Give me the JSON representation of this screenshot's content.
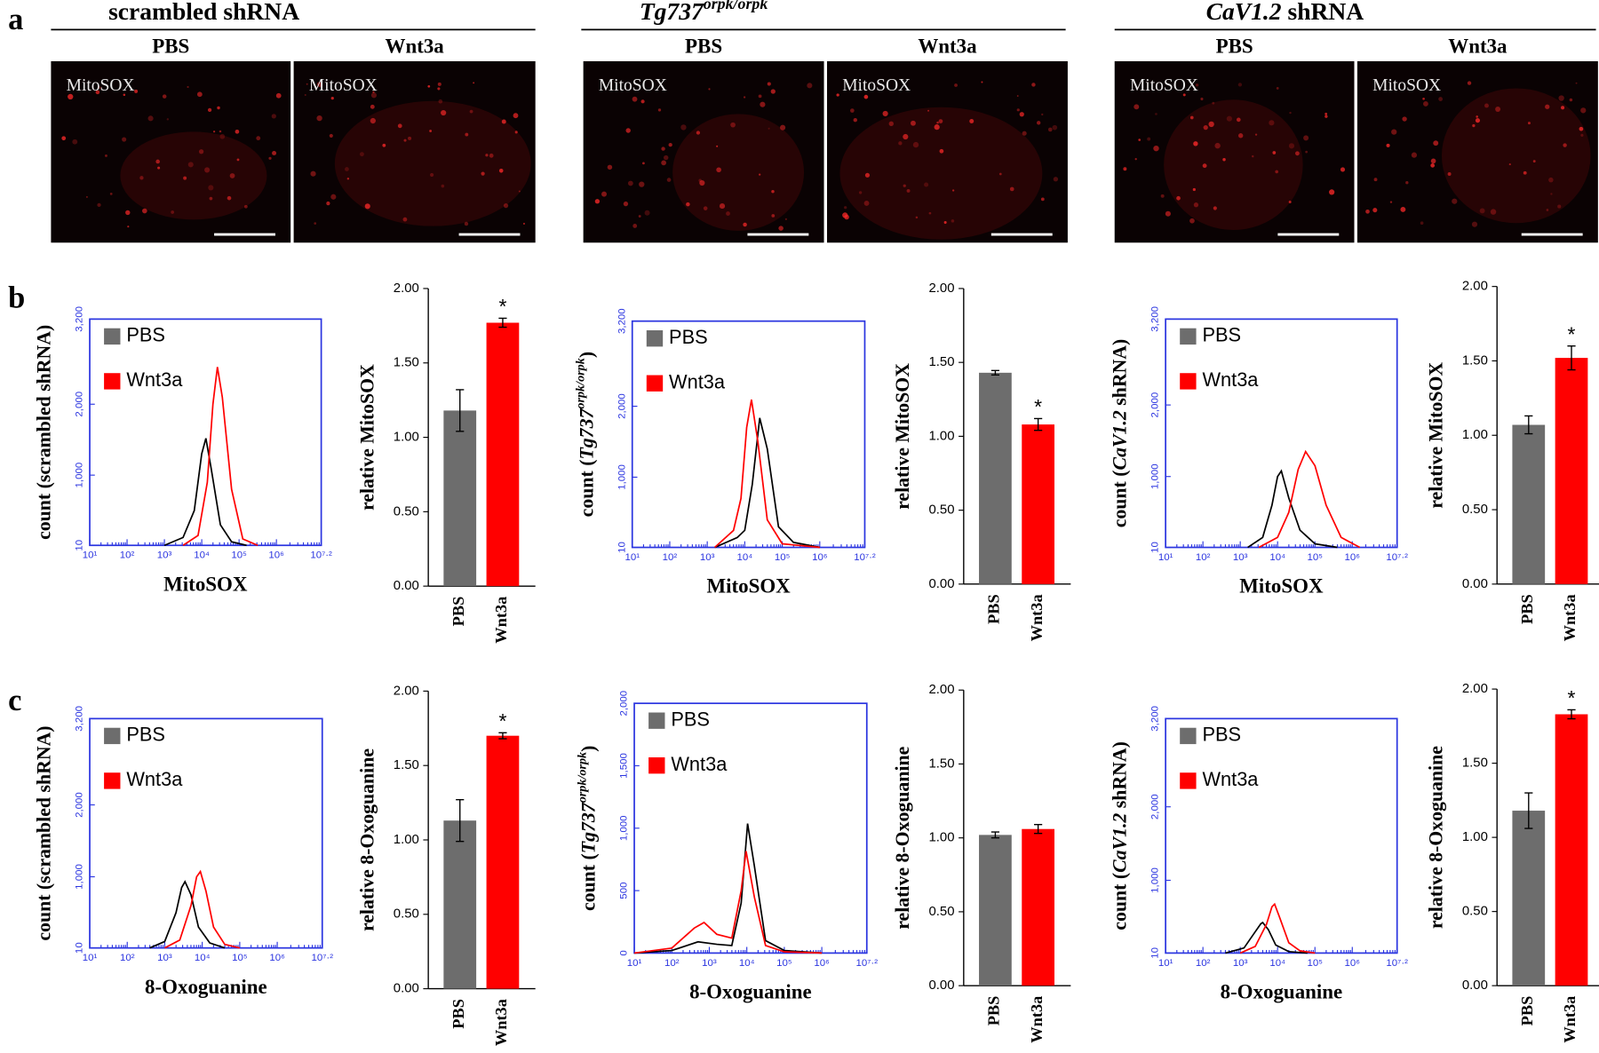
{
  "panel_labels": [
    "a",
    "b",
    "c"
  ],
  "columns": [
    {
      "title_parts": [
        {
          "text": "scrambled shRNA"
        }
      ],
      "panels": [
        {
          "condition": "PBS",
          "label": "MitoSOX"
        },
        {
          "condition": "Wnt3a",
          "label": "MitoSOX"
        }
      ]
    },
    {
      "title_parts": [
        {
          "text": "Tg737",
          "style": "italic"
        },
        {
          "text": "orpk/orpk",
          "style": "italic-superscript"
        }
      ],
      "panels": [
        {
          "condition": "PBS",
          "label": "MitoSOX"
        },
        {
          "condition": "Wnt3a",
          "label": "MitoSOX"
        }
      ]
    },
    {
      "title_parts": [
        {
          "text": "CaV1.2",
          "style": "italic"
        },
        {
          "text": " shRNA"
        }
      ],
      "panels": [
        {
          "condition": "PBS",
          "label": "MitoSOX"
        },
        {
          "condition": "Wnt3a",
          "label": "MitoSOX"
        }
      ]
    }
  ],
  "chart_data": [
    {
      "type": "line",
      "x_label": "MitoSOX",
      "y_label_parts": [
        {
          "text": "count (scrambled shRNA)"
        }
      ],
      "axis_color": "#2b35e0",
      "xlim": [
        1,
        7.2
      ],
      "xticks": [
        {
          "value": 1,
          "label": "10¹"
        },
        {
          "value": 2,
          "label": "10²"
        },
        {
          "value": 3,
          "label": "10³"
        },
        {
          "value": 4,
          "label": "10⁴"
        },
        {
          "value": 5,
          "label": "10⁵"
        },
        {
          "value": 6,
          "label": "10⁶"
        },
        {
          "value": 7.2,
          "label": "10⁷·²"
        }
      ],
      "ylim": [
        10,
        3200
      ],
      "yticks": [
        10,
        {
          "value": 1000,
          "label": "1,000"
        },
        {
          "value": 2000,
          "label": "2,000"
        },
        {
          "value": 3200,
          "label": "3,200"
        }
      ],
      "series": [
        {
          "name": "PBS",
          "color": "#000000",
          "legend_color": "#6d6d6d",
          "x": [
            3.0,
            3.5,
            3.8,
            4.0,
            4.11,
            4.25,
            4.5,
            4.8,
            5.2
          ],
          "values": [
            10,
            120,
            500,
            1300,
            1519,
            1100,
            300,
            60,
            10
          ]
        },
        {
          "name": "Wnt3a",
          "color": "#ff0000",
          "legend_color": "#ff0000",
          "x": [
            3.5,
            3.9,
            4.15,
            4.3,
            4.42,
            4.55,
            4.8,
            5.1,
            5.5
          ],
          "values": [
            10,
            150,
            900,
            2000,
            2525,
            2100,
            800,
            100,
            10
          ]
        }
      ]
    },
    {
      "type": "bar",
      "y_label": "relative MitoSOX",
      "categories": [
        "PBS",
        "Wnt3a"
      ],
      "colors": [
        "#6d6d6d",
        "#ff0000"
      ],
      "values": [
        1.18,
        1.77
      ],
      "errors": [
        0.14,
        0.03
      ],
      "ylim": [
        0,
        2
      ],
      "yticks": [
        {
          "value": 0,
          "label": "0.00"
        },
        {
          "value": 0.5,
          "label": "0.50"
        },
        {
          "value": 1,
          "label": "1.00"
        },
        {
          "value": 1.5,
          "label": "1.50"
        },
        {
          "value": 2,
          "label": "2.00"
        }
      ],
      "annotations": [
        {
          "text": "*",
          "category": "Wnt3a"
        }
      ]
    },
    {
      "type": "line",
      "x_label": "MitoSOX",
      "y_label_parts": [
        {
          "text": "count ("
        },
        {
          "text": "Tg737",
          "style": "italic"
        },
        {
          "text": "orpk/orpk",
          "style": "italic-superscript"
        },
        {
          "text": ")"
        }
      ],
      "axis_color": "#2b35e0",
      "xlim": [
        1,
        7.2
      ],
      "xticks": [
        {
          "value": 1,
          "label": "10¹"
        },
        {
          "value": 2,
          "label": "10²"
        },
        {
          "value": 3,
          "label": "10³"
        },
        {
          "value": 4,
          "label": "10⁴"
        },
        {
          "value": 5,
          "label": "10⁵"
        },
        {
          "value": 6,
          "label": "10⁶"
        },
        {
          "value": 7.2,
          "label": "10⁷·²"
        }
      ],
      "ylim": [
        10,
        3200
      ],
      "yticks": [
        10,
        {
          "value": 1000,
          "label": "1,000"
        },
        {
          "value": 2000,
          "label": "2,000"
        },
        {
          "value": 3200,
          "label": "3,200"
        }
      ],
      "series": [
        {
          "name": "PBS",
          "color": "#000000",
          "legend_color": "#6d6d6d",
          "x": [
            3.2,
            3.8,
            4.0,
            4.2,
            4.4,
            4.6,
            4.9,
            5.3,
            6.0
          ],
          "values": [
            10,
            150,
            250,
            900,
            1835,
            1400,
            300,
            80,
            10
          ]
        },
        {
          "name": "Wnt3a",
          "color": "#ff0000",
          "legend_color": "#ff0000",
          "x": [
            3.2,
            3.7,
            3.9,
            4.05,
            4.18,
            4.35,
            4.6,
            5.0,
            6.0
          ],
          "values": [
            10,
            250,
            700,
            1700,
            2093,
            1500,
            400,
            60,
            10
          ]
        }
      ]
    },
    {
      "type": "bar",
      "y_label": "relative MitoSOX",
      "categories": [
        "PBS",
        "Wnt3a"
      ],
      "colors": [
        "#6d6d6d",
        "#ff0000"
      ],
      "values": [
        1.43,
        1.08
      ],
      "errors": [
        0.015,
        0.04
      ],
      "ylim": [
        0,
        2
      ],
      "yticks": [
        {
          "value": 0,
          "label": "0.00"
        },
        {
          "value": 0.5,
          "label": "0.50"
        },
        {
          "value": 1,
          "label": "1.00"
        },
        {
          "value": 1.5,
          "label": "1.50"
        },
        {
          "value": 2,
          "label": "2.00"
        }
      ],
      "annotations": [
        {
          "text": "*",
          "category": "Wnt3a"
        }
      ]
    },
    {
      "type": "line",
      "x_label": "MitoSOX",
      "y_label_parts": [
        {
          "text": "count ("
        },
        {
          "text": "CaV1.2",
          "style": "italic"
        },
        {
          "text": " shRNA)"
        }
      ],
      "axis_color": "#2b35e0",
      "xlim": [
        1,
        7.2
      ],
      "xticks": [
        {
          "value": 1,
          "label": "10¹"
        },
        {
          "value": 2,
          "label": "10²"
        },
        {
          "value": 3,
          "label": "10³"
        },
        {
          "value": 4,
          "label": "10⁴"
        },
        {
          "value": 5,
          "label": "10⁵"
        },
        {
          "value": 6,
          "label": "10⁶"
        },
        {
          "value": 7.2,
          "label": "10⁷·²"
        }
      ],
      "ylim": [
        10,
        3200
      ],
      "yticks": [
        10,
        {
          "value": 1000,
          "label": "1,000"
        },
        {
          "value": 2000,
          "label": "2,000"
        },
        {
          "value": 3200,
          "label": "3,200"
        }
      ],
      "series": [
        {
          "name": "PBS",
          "color": "#000000",
          "legend_color": "#6d6d6d",
          "x": [
            3.2,
            3.6,
            3.85,
            4.0,
            4.1,
            4.3,
            4.6,
            5.0,
            5.6
          ],
          "values": [
            10,
            150,
            600,
            1000,
            1078,
            700,
            250,
            60,
            10
          ]
        },
        {
          "name": "Wnt3a",
          "color": "#ff0000",
          "legend_color": "#ff0000",
          "x": [
            3.5,
            4.0,
            4.3,
            4.55,
            4.75,
            5.0,
            5.3,
            5.7,
            6.2
          ],
          "values": [
            10,
            150,
            500,
            1100,
            1348,
            1150,
            600,
            150,
            10
          ]
        }
      ]
    },
    {
      "type": "bar",
      "y_label": "relative MitoSOX",
      "categories": [
        "PBS",
        "Wnt3a"
      ],
      "colors": [
        "#6d6d6d",
        "#ff0000"
      ],
      "values": [
        1.07,
        1.52
      ],
      "errors": [
        0.06,
        0.08
      ],
      "ylim": [
        0,
        2
      ],
      "yticks": [
        {
          "value": 0,
          "label": "0.00"
        },
        {
          "value": 0.5,
          "label": "0.50"
        },
        {
          "value": 1,
          "label": "1.00"
        },
        {
          "value": 1.5,
          "label": "1.50"
        },
        {
          "value": 2,
          "label": "2.00"
        }
      ],
      "annotations": [
        {
          "text": "*",
          "category": "Wnt3a"
        }
      ]
    },
    {
      "type": "line",
      "x_label": "8-Oxoguanine",
      "y_label_parts": [
        {
          "text": "count (scrambled shRNA)"
        }
      ],
      "axis_color": "#2b35e0",
      "xlim": [
        1,
        7.2
      ],
      "xticks": [
        {
          "value": 1,
          "label": "10¹"
        },
        {
          "value": 2,
          "label": "10²"
        },
        {
          "value": 3,
          "label": "10³"
        },
        {
          "value": 4,
          "label": "10⁴"
        },
        {
          "value": 5,
          "label": "10⁵"
        },
        {
          "value": 6,
          "label": "10⁶"
        },
        {
          "value": 7.2,
          "label": "10⁷·²"
        }
      ],
      "ylim": [
        10,
        3200
      ],
      "yticks": [
        10,
        {
          "value": 1000,
          "label": "1,000"
        },
        {
          "value": 2000,
          "label": "2,000"
        },
        {
          "value": 3200,
          "label": "3,200"
        }
      ],
      "series": [
        {
          "name": "PBS",
          "color": "#000000",
          "legend_color": "#6d6d6d",
          "x": [
            2.6,
            3.0,
            3.3,
            3.45,
            3.54,
            3.7,
            3.9,
            4.2,
            4.6
          ],
          "values": [
            10,
            100,
            500,
            850,
            932,
            750,
            300,
            80,
            10
          ]
        },
        {
          "name": "Wnt3a",
          "color": "#ff0000",
          "legend_color": "#ff0000",
          "x": [
            3.0,
            3.4,
            3.7,
            3.85,
            3.95,
            4.1,
            4.3,
            4.6,
            5.0
          ],
          "values": [
            10,
            120,
            600,
            1000,
            1073,
            800,
            300,
            60,
            10
          ]
        }
      ]
    },
    {
      "type": "bar",
      "y_label": "relative 8-Oxoguanine",
      "categories": [
        "PBS",
        "Wnt3a"
      ],
      "colors": [
        "#6d6d6d",
        "#ff0000"
      ],
      "values": [
        1.13,
        1.7
      ],
      "errors": [
        0.14,
        0.02
      ],
      "ylim": [
        0,
        2
      ],
      "yticks": [
        {
          "value": 0,
          "label": "0.00"
        },
        {
          "value": 0.5,
          "label": "0.50"
        },
        {
          "value": 1,
          "label": "1.00"
        },
        {
          "value": 1.5,
          "label": "1.50"
        },
        {
          "value": 2,
          "label": "2.00"
        }
      ],
      "annotations": [
        {
          "text": "*",
          "category": "Wnt3a"
        }
      ]
    },
    {
      "type": "line",
      "x_label": "8-Oxoguanine",
      "y_label_parts": [
        {
          "text": "count ("
        },
        {
          "text": "Tg737",
          "style": "italic"
        },
        {
          "text": "orpk/orpk",
          "style": "italic-superscript"
        },
        {
          "text": ")"
        }
      ],
      "axis_color": "#2b35e0",
      "xlim": [
        1,
        7.2
      ],
      "xticks": [
        {
          "value": 1,
          "label": "10¹"
        },
        {
          "value": 2,
          "label": "10²"
        },
        {
          "value": 3,
          "label": "10³"
        },
        {
          "value": 4,
          "label": "10⁴"
        },
        {
          "value": 5,
          "label": "10⁵"
        },
        {
          "value": 6,
          "label": "10⁶"
        },
        {
          "value": 7.2,
          "label": "10⁷·²"
        }
      ],
      "ylim": [
        0,
        2000
      ],
      "yticks": [
        0,
        500,
        {
          "value": 1000,
          "label": "1,000"
        },
        {
          "value": 1500,
          "label": "1,500"
        },
        {
          "value": 2000,
          "label": "2,000"
        }
      ],
      "series": [
        {
          "name": "PBS",
          "color": "#000000",
          "legend_color": "#6d6d6d",
          "x": [
            1.0,
            2.0,
            2.7,
            3.2,
            3.6,
            3.85,
            4.02,
            4.2,
            4.5,
            5.0,
            6.0
          ],
          "values": [
            0,
            20,
            90,
            70,
            60,
            400,
            1037,
            700,
            100,
            20,
            0
          ]
        },
        {
          "name": "Wnt3a",
          "color": "#ff0000",
          "legend_color": "#ff0000",
          "x": [
            1.0,
            2.0,
            2.6,
            2.86,
            3.2,
            3.6,
            3.85,
            3.98,
            4.2,
            4.5,
            5.0,
            6.0
          ],
          "values": [
            0,
            40,
            200,
            245,
            150,
            120,
            500,
            816,
            450,
            60,
            10,
            0
          ]
        }
      ]
    },
    {
      "type": "bar",
      "y_label": "relative 8-Oxoguanine",
      "categories": [
        "PBS",
        "Wnt3a"
      ],
      "colors": [
        "#6d6d6d",
        "#ff0000"
      ],
      "values": [
        1.02,
        1.06
      ],
      "errors": [
        0.02,
        0.03
      ],
      "ylim": [
        0,
        2
      ],
      "yticks": [
        {
          "value": 0,
          "label": "0.00"
        },
        {
          "value": 0.5,
          "label": "0.50"
        },
        {
          "value": 1,
          "label": "1.00"
        },
        {
          "value": 1.5,
          "label": "1.50"
        },
        {
          "value": 2,
          "label": "2.00"
        }
      ]
    },
    {
      "type": "line",
      "x_label": "8-Oxoguanine",
      "y_label_parts": [
        {
          "text": "count ("
        },
        {
          "text": "CaV1.2",
          "style": "italic"
        },
        {
          "text": " shRNA)"
        }
      ],
      "axis_color": "#2b35e0",
      "xlim": [
        1,
        7.2
      ],
      "xticks": [
        {
          "value": 1,
          "label": "10¹"
        },
        {
          "value": 2,
          "label": "10²"
        },
        {
          "value": 3,
          "label": "10³"
        },
        {
          "value": 4,
          "label": "10⁴"
        },
        {
          "value": 5,
          "label": "10⁵"
        },
        {
          "value": 6,
          "label": "10⁶"
        },
        {
          "value": 7.2,
          "label": "10⁷·²"
        }
      ],
      "ylim": [
        10,
        3200
      ],
      "yticks": [
        10,
        {
          "value": 1000,
          "label": "1,000"
        },
        {
          "value": 2000,
          "label": "2,000"
        },
        {
          "value": 3200,
          "label": "3,200"
        }
      ],
      "series": [
        {
          "name": "PBS",
          "color": "#000000",
          "legend_color": "#6d6d6d",
          "x": [
            2.6,
            3.1,
            3.4,
            3.55,
            3.6,
            3.75,
            3.95,
            4.3,
            4.8
          ],
          "values": [
            10,
            80,
            300,
            410,
            426,
            330,
            120,
            30,
            10
          ]
        },
        {
          "name": "Wnt3a",
          "color": "#ff0000",
          "legend_color": "#ff0000",
          "x": [
            3.0,
            3.4,
            3.7,
            3.85,
            3.92,
            4.05,
            4.3,
            4.6,
            5.0
          ],
          "values": [
            10,
            100,
            400,
            640,
            676,
            500,
            150,
            40,
            10
          ]
        }
      ]
    },
    {
      "type": "bar",
      "y_label": "relative 8-Oxoguanine",
      "categories": [
        "PBS",
        "Wnt3a"
      ],
      "colors": [
        "#6d6d6d",
        "#ff0000"
      ],
      "values": [
        1.18,
        1.83
      ],
      "errors": [
        0.12,
        0.03
      ],
      "ylim": [
        0,
        2
      ],
      "yticks": [
        {
          "value": 0,
          "label": "0.00"
        },
        {
          "value": 0.5,
          "label": "0.50"
        },
        {
          "value": 1,
          "label": "1.00"
        },
        {
          "value": 1.5,
          "label": "1.50"
        },
        {
          "value": 2,
          "label": "2.00"
        }
      ],
      "annotations": [
        {
          "text": "*",
          "category": "Wnt3a"
        }
      ]
    }
  ]
}
